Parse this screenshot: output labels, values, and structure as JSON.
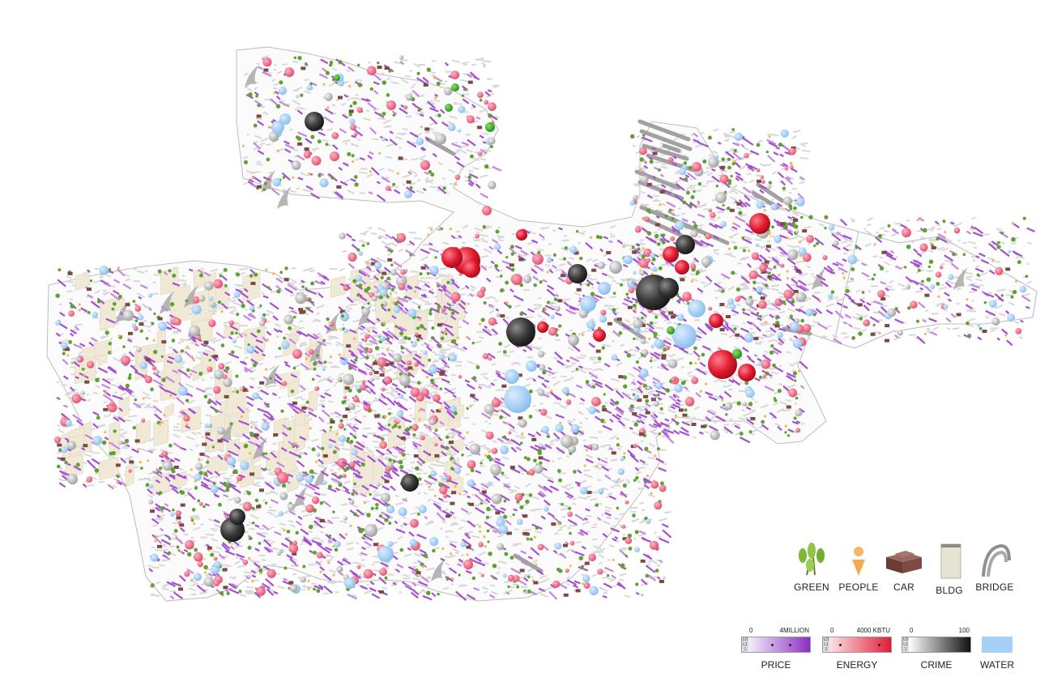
{
  "map": {
    "colors": {
      "outline": "#b9b9b9",
      "street": "#d8d8d8",
      "price": "#a64fd0",
      "energy": "#e5233c",
      "energy_light": "#ef6a86",
      "crime": "#3a3a3a",
      "crime_light": "#b8b8b8",
      "water": "#9ccbf4",
      "green": "#5fa233",
      "people": "#f2b760",
      "car": "#7a4b44",
      "bldg": "#efe9d6",
      "bridge": "#a3a3a3"
    }
  },
  "legend": {
    "icons": [
      {
        "icon": "green-icon",
        "label": "GREEN"
      },
      {
        "icon": "people-icon",
        "label": "PEOPLE"
      },
      {
        "icon": "car-icon",
        "label": "CAR"
      },
      {
        "icon": "building-icon",
        "label": "BLDG"
      },
      {
        "icon": "bridge-icon",
        "label": "BRIDGE"
      }
    ],
    "scales": [
      {
        "label": "PRICE",
        "min": "0",
        "max": "4MILLION",
        "color_from": "#f5eefa",
        "color_to": "#8a2fc0"
      },
      {
        "label": "ENERGY",
        "min": "0",
        "max": "4000 KBTU",
        "color_from": "#fbe3e8",
        "color_to": "#e11c36"
      },
      {
        "label": "CRIME",
        "min": "0",
        "max": "100",
        "color_from": "#ffffff",
        "color_to": "#111111"
      }
    ],
    "scale_side_marks": [
      "LO",
      "L1",
      "1"
    ],
    "water": {
      "label": "WATER",
      "color": "#a6d0f6"
    }
  }
}
